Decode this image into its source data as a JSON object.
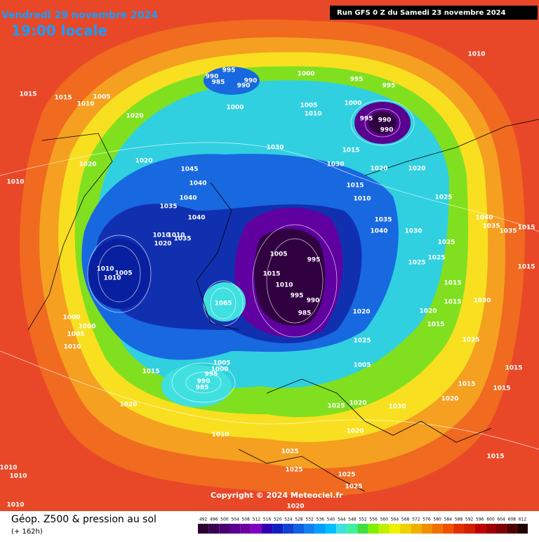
{
  "header": {
    "date": "Vendredi 29 novembre 2024",
    "time": "19:00 locale",
    "run": "Run GFS 0 Z du Samedi 23 novembre 2024"
  },
  "copyright": "Copyright © 2024 Meteociel.fr",
  "footer": {
    "title": "Géop. Z500 & pression au sol",
    "subtitle": "(+ 162h)"
  },
  "legend": {
    "levels": [
      492,
      496,
      500,
      504,
      508,
      512,
      516,
      520,
      524,
      528,
      532,
      536,
      540,
      544,
      548,
      552,
      556,
      560,
      564,
      568,
      572,
      576,
      580,
      584,
      588,
      592,
      596,
      600,
      604,
      608,
      612
    ],
    "colors": [
      "#2a0030",
      "#3a0050",
      "#4b0070",
      "#5a0090",
      "#7000a0",
      "#8000c0",
      "#3000b0",
      "#1020c0",
      "#1040d0",
      "#1060e0",
      "#1080f0",
      "#00a0ff",
      "#00c0ff",
      "#40e0e0",
      "#40f0a0",
      "#40e040",
      "#80f000",
      "#c0f000",
      "#f0f000",
      "#f0d000",
      "#f0b000",
      "#f09000",
      "#f07000",
      "#f05000",
      "#e03000",
      "#d02000",
      "#c00000",
      "#a00000",
      "#800000",
      "#500000",
      "#200000"
    ]
  },
  "map": {
    "pressure_labels": [
      "1010",
      "995",
      "990",
      "985",
      "990",
      "990",
      "1000",
      "995",
      "995",
      "1015",
      "1015",
      "1010",
      "1005",
      "1020",
      "1000",
      "1005",
      "1010",
      "1000",
      "990",
      "995",
      "990",
      "1030",
      "1015",
      "1030",
      "1020",
      "1020",
      "1045",
      "1020",
      "1020",
      "1010",
      "1040",
      "1015",
      "1010",
      "1025",
      "1035",
      "1040",
      "1040",
      "1035",
      "1040",
      "1030",
      "1040",
      "1035",
      "1035",
      "1015",
      "1010",
      "1010",
      "1020",
      "1035",
      "1025",
      "1005",
      "995",
      "1025",
      "1025",
      "1010",
      "1005",
      "1010",
      "1015",
      "1010",
      "1015",
      "1015",
      "1065",
      "995",
      "990",
      "985",
      "1020",
      "1020",
      "1015",
      "1030",
      "1000",
      "1015",
      "1000",
      "1005",
      "1025",
      "1025",
      "1010",
      "1005",
      "1015",
      "1005",
      "1000",
      "995",
      "990",
      "985",
      "1015",
      "1015",
      "1025",
      "1020",
      "1030",
      "1020",
      "1020",
      "1020",
      "1010",
      "1015",
      "1025",
      "1010",
      "1010",
      "1025",
      "1025",
      "1025",
      "1010",
      "1020",
      "1015"
    ]
  }
}
